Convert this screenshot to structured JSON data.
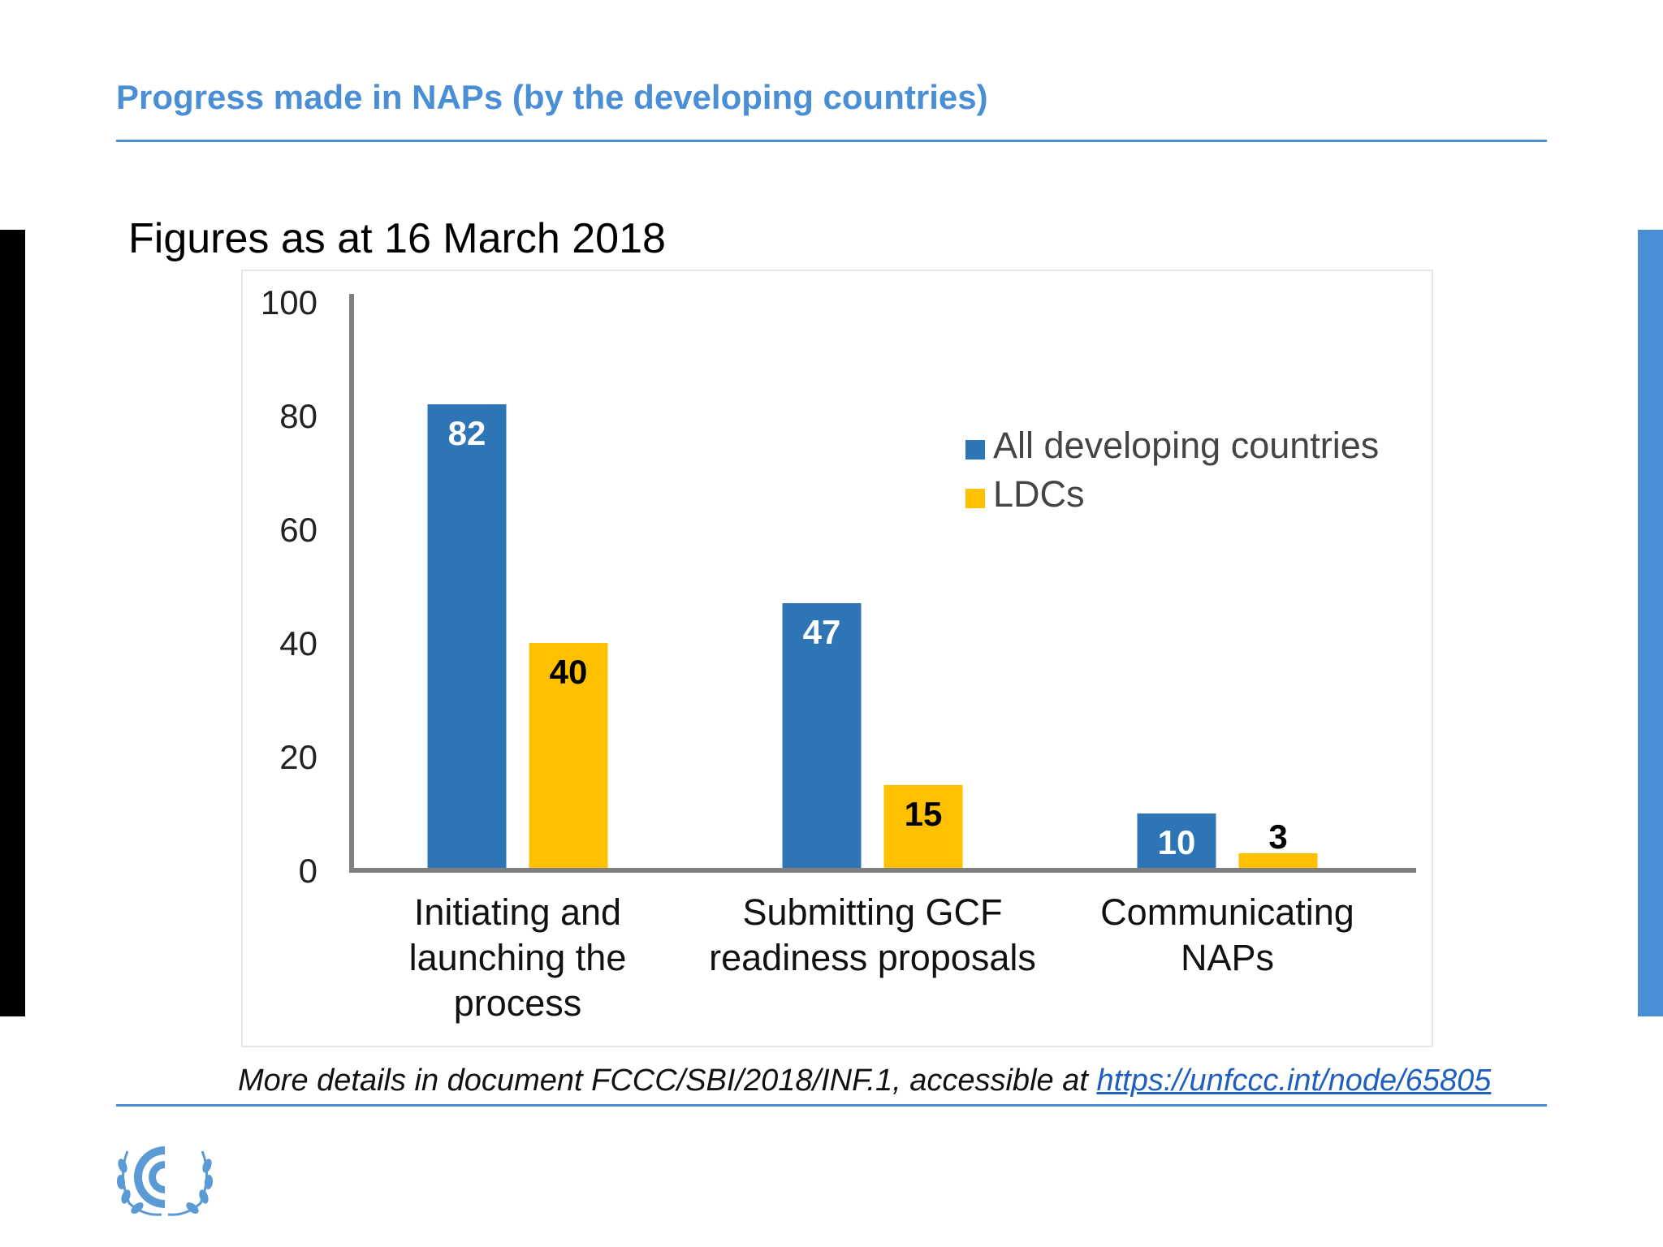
{
  "slide": {
    "title": "Progress made in NAPs (by the developing countries)",
    "subtitle": "Figures as at 16 March 2018",
    "footer_text": "More details in document FCCC/SBI/2018/INF.1, accessible at ",
    "footer_link": "https://unfccc.int/node/65805",
    "logo_icon": "unfccc-logo-icon",
    "accent_color": "#4a8fd6"
  },
  "chart_data": {
    "type": "bar",
    "categories": [
      [
        "Initiating and",
        "launching the",
        "process"
      ],
      [
        "Submitting GCF",
        "readiness proposals"
      ],
      [
        "Communicating",
        "NAPs"
      ]
    ],
    "series": [
      {
        "name": "All developing countries",
        "values": [
          82,
          47,
          10
        ],
        "color": "#2e75b6",
        "label_color": "#ffffff"
      },
      {
        "name": "LDCs",
        "values": [
          40,
          15,
          3
        ],
        "color": "#ffc000",
        "label_color": "#000000"
      }
    ],
    "ylim": [
      0,
      100
    ],
    "yticks": [
      0,
      20,
      40,
      60,
      80,
      100
    ],
    "title": "",
    "xlabel": "",
    "ylabel": "",
    "grid": false,
    "legend": "right"
  }
}
